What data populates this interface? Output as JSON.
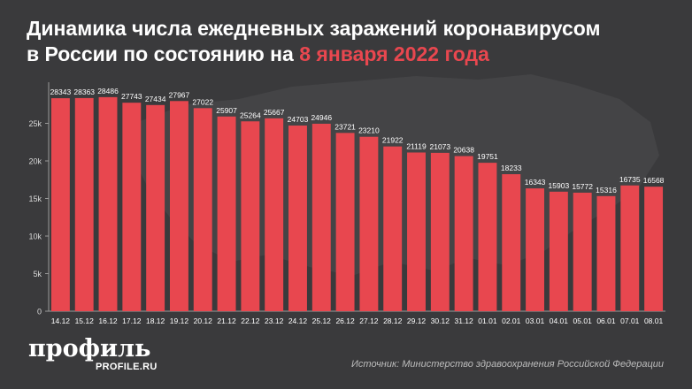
{
  "title": {
    "line1": "Динамика числа ежедневных заражений коронавирусом",
    "line2_prefix": "в России по состоянию на",
    "line2_accent": "8 января 2022 года"
  },
  "brand": {
    "logo": "профиль",
    "site": "PROFILE.RU"
  },
  "source": "Источник: Министерство здравоохранения Российской Федерации",
  "colors": {
    "background": "#3a3a3c",
    "bar": "#e8474f",
    "text": "#ffffff",
    "accent": "#e8474f"
  },
  "chart_data": {
    "type": "bar",
    "categories": [
      "14.12",
      "15.12",
      "16.12",
      "17.12",
      "18.12",
      "19.12",
      "20.12",
      "21.12",
      "22.12",
      "23.12",
      "24.12",
      "25.12",
      "26.12",
      "27.12",
      "28.12",
      "29.12",
      "30.12",
      "31.12",
      "01.01",
      "02.01",
      "03.01",
      "04.01",
      "05.01",
      "06.01",
      "07.01",
      "08.01"
    ],
    "values": [
      28343,
      28363,
      28486,
      27743,
      27434,
      27967,
      27022,
      25907,
      25264,
      25667,
      24703,
      24946,
      23721,
      23210,
      21922,
      21119,
      21073,
      20638,
      19751,
      18233,
      16343,
      15903,
      15772,
      15316,
      16735,
      16568
    ],
    "yticks": [
      0,
      5000,
      10000,
      15000,
      20000,
      25000
    ],
    "ytick_labels": [
      "0",
      "5k",
      "10k",
      "15k",
      "20k",
      "25k"
    ],
    "ylim": [
      0,
      30000
    ],
    "grid": false,
    "data_labels": true,
    "xlabel": "",
    "ylabel": ""
  }
}
